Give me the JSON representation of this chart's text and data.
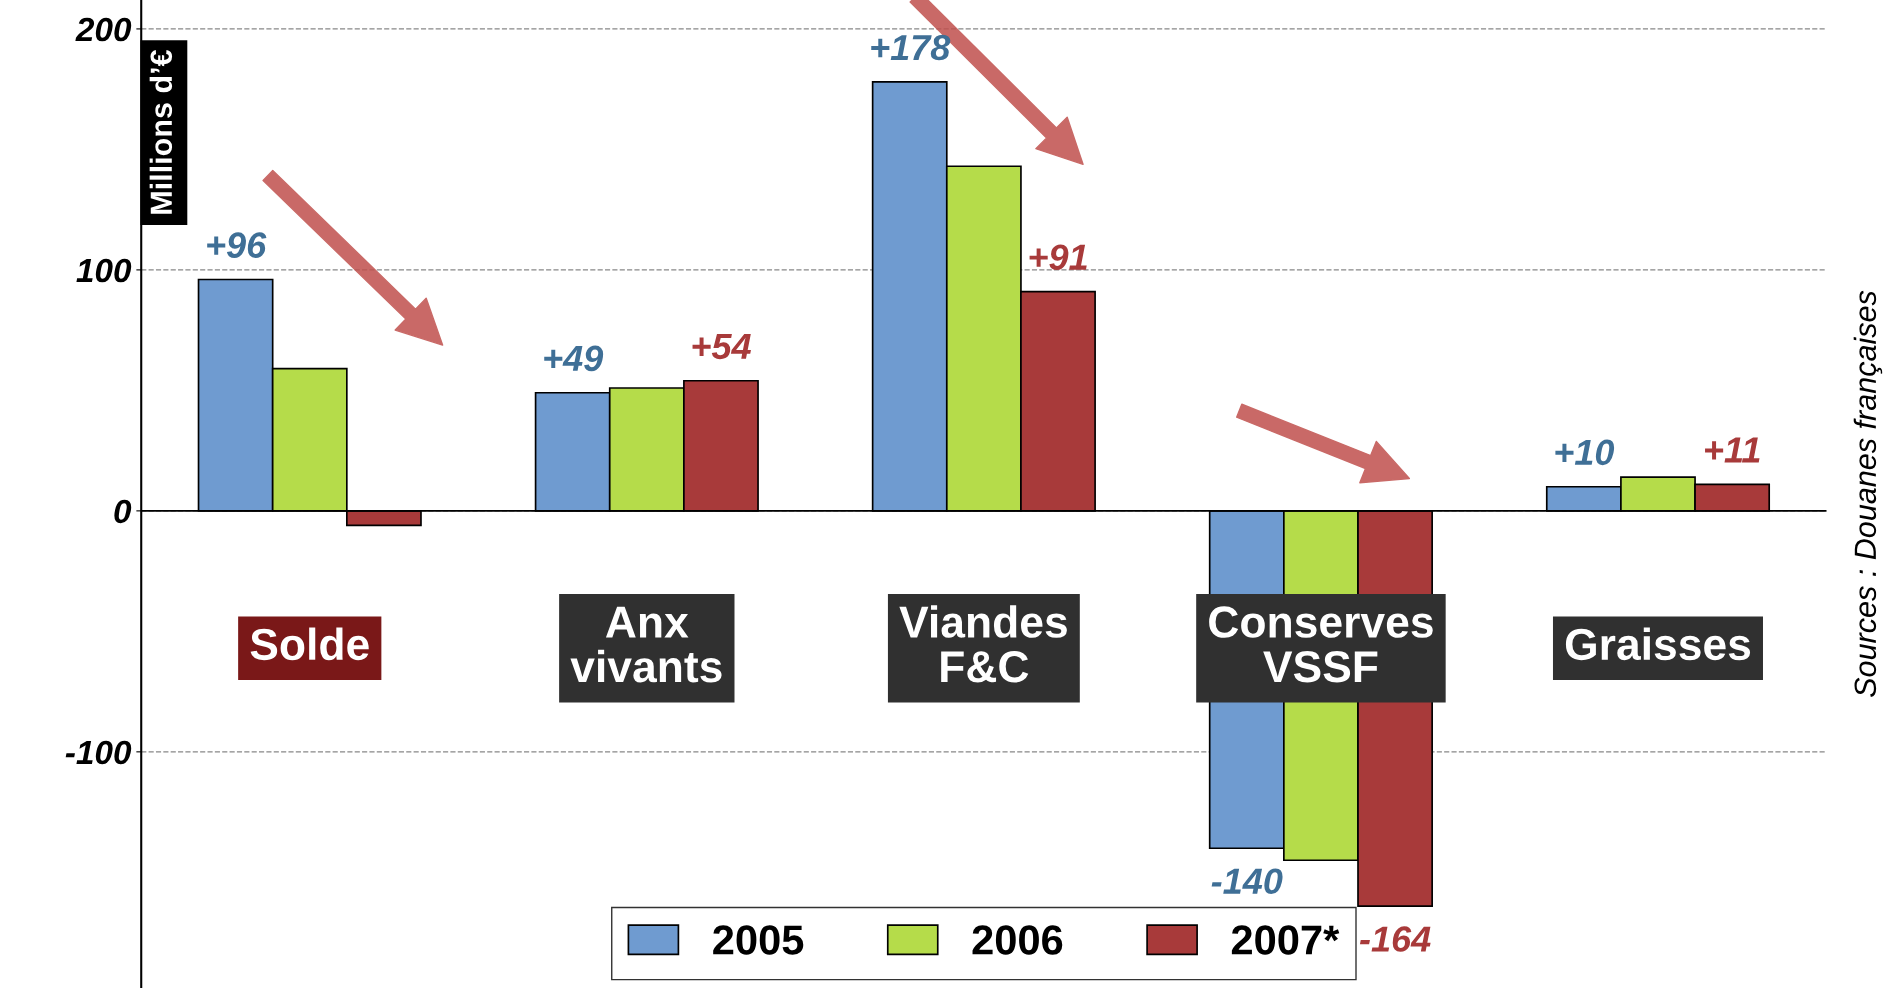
{
  "chart_data": {
    "type": "bar",
    "ylabel": "Millions d’€",
    "categories": [
      "Solde",
      "Anx\nvivants",
      "Viandes\nF&C",
      "Conserves\nVSSF",
      "Graisses"
    ],
    "series": [
      {
        "name": "2005",
        "color": "#6f9bd0",
        "values": [
          96,
          49,
          178,
          -140,
          10
        ],
        "value_labels": [
          "+96",
          "+49",
          "+178",
          "-140",
          "+10"
        ]
      },
      {
        "name": "2006",
        "color": "#b5dc4a",
        "values": [
          59,
          51,
          143,
          -145,
          14
        ]
      },
      {
        "name": "2007*",
        "color": "#a83a3a",
        "values": [
          -6,
          54,
          91,
          -164,
          11
        ],
        "value_labels": [
          null,
          "+54",
          "+91",
          "-164",
          "+11"
        ]
      }
    ],
    "ylim": [
      -198,
      212
    ],
    "yticks": [
      -100,
      0,
      100,
      200
    ],
    "grid": "y",
    "legend": "bottom",
    "annotations": [
      "Sources : Douanes françaises"
    ]
  }
}
